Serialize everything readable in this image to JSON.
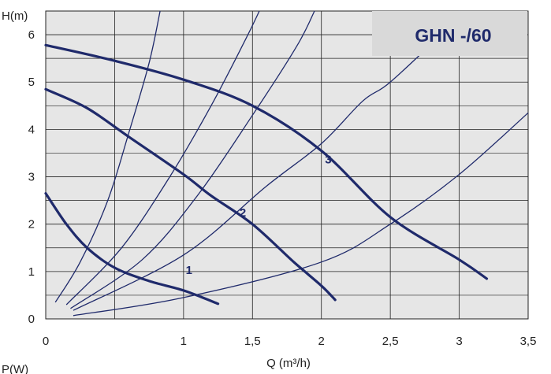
{
  "chart_data": {
    "type": "line",
    "title": "GHN -/60",
    "xlabel": "Q (m³/h)",
    "ylabel": "H(m)",
    "footer_label": "P(W)",
    "xlim": [
      0,
      3.5
    ],
    "ylim": [
      0,
      6.5
    ],
    "x_ticks": [
      0,
      0.5,
      1,
      1.5,
      2,
      2.5,
      3,
      3.5
    ],
    "x_tick_labels": [
      "0",
      "",
      "1",
      "1,5",
      "2",
      "2,5",
      "3",
      "3,5"
    ],
    "y_ticks": [
      0,
      1,
      2,
      3,
      4,
      5,
      6
    ],
    "y_tick_labels": [
      "0",
      "1",
      "2",
      "3",
      "4",
      "5",
      "6"
    ],
    "grid": true,
    "colors": {
      "curve": "#1f2a6b",
      "plot_bg": "#e6e6e6",
      "grid": "#222222",
      "label_box": "#d9d9d9"
    },
    "series": [
      {
        "name": "1",
        "label_at": [
          1.04,
          0.95
        ],
        "points": [
          [
            0,
            2.65
          ],
          [
            0.15,
            2.0
          ],
          [
            0.3,
            1.5
          ],
          [
            0.5,
            1.08
          ],
          [
            0.75,
            0.8
          ],
          [
            1.0,
            0.6
          ],
          [
            1.25,
            0.32
          ]
        ]
      },
      {
        "name": "2",
        "label_at": [
          1.43,
          2.16
        ],
        "points": [
          [
            0,
            4.85
          ],
          [
            0.3,
            4.45
          ],
          [
            0.6,
            3.85
          ],
          [
            1.0,
            3.05
          ],
          [
            1.2,
            2.6
          ],
          [
            1.5,
            2.0
          ],
          [
            1.8,
            1.2
          ],
          [
            2.0,
            0.7
          ],
          [
            2.1,
            0.4
          ]
        ]
      },
      {
        "name": "3",
        "label_at": [
          2.05,
          3.28
        ],
        "points": [
          [
            0,
            5.78
          ],
          [
            0.5,
            5.45
          ],
          [
            1.0,
            5.05
          ],
          [
            1.5,
            4.5
          ],
          [
            2.0,
            3.55
          ],
          [
            2.5,
            2.15
          ],
          [
            3.0,
            1.25
          ],
          [
            3.2,
            0.85
          ]
        ]
      }
    ],
    "system_curves": [
      {
        "points": [
          [
            0.07,
            0.35
          ],
          [
            0.25,
            1.2
          ],
          [
            0.45,
            2.5
          ],
          [
            0.6,
            3.9
          ],
          [
            0.75,
            5.4
          ],
          [
            0.83,
            6.5
          ]
        ]
      },
      {
        "points": [
          [
            0.15,
            0.3
          ],
          [
            0.55,
            1.5
          ],
          [
            0.9,
            3.0
          ],
          [
            1.2,
            4.5
          ],
          [
            1.45,
            5.9
          ],
          [
            1.55,
            6.5
          ]
        ]
      },
      {
        "points": [
          [
            0.18,
            0.22
          ],
          [
            0.7,
            1.25
          ],
          [
            1.1,
            2.6
          ],
          [
            1.5,
            4.3
          ],
          [
            1.82,
            5.75
          ],
          [
            1.95,
            6.5
          ]
        ]
      },
      {
        "points": [
          [
            0.2,
            0.18
          ],
          [
            1.0,
            1.35
          ],
          [
            1.6,
            2.8
          ],
          [
            2.0,
            3.7
          ],
          [
            2.3,
            4.6
          ],
          [
            2.5,
            5.0
          ],
          [
            2.9,
            6.1
          ],
          [
            3.0,
            6.5
          ]
        ]
      },
      {
        "points": [
          [
            0.2,
            0.07
          ],
          [
            1.0,
            0.45
          ],
          [
            2.0,
            1.2
          ],
          [
            2.5,
            2.0
          ],
          [
            3.0,
            3.05
          ],
          [
            3.5,
            4.35
          ]
        ]
      }
    ]
  }
}
